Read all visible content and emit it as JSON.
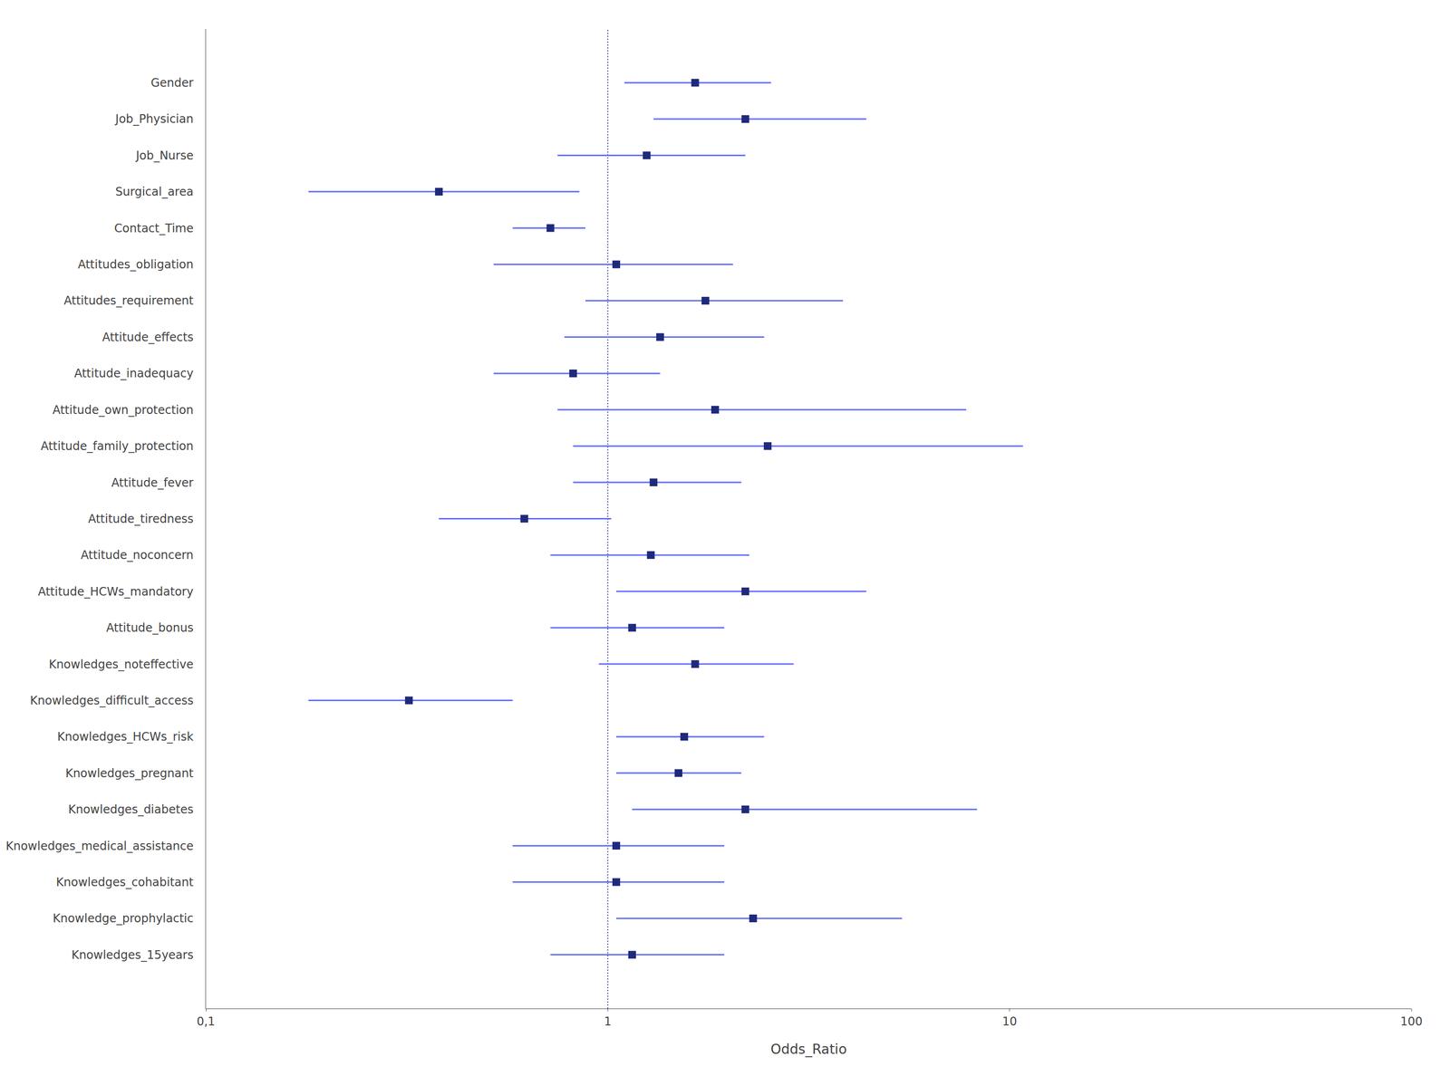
{
  "chart_data": {
    "type": "forest",
    "x_label": "Odds_Ratio",
    "categories": [
      "Gender",
      "Job_Physician",
      "Job_Nurse",
      "Surgical_area",
      "Contact_Time",
      "Attitudes_obligation",
      "Attitudes_requirement",
      "Attitude_effects",
      "Attitude_inadequacy",
      "Attitude_own_protection",
      "Attitude_family_protection",
      "Attitude_fever",
      "Attitude_tiredness",
      "Attitude_noconcern",
      "Attitude_HCWs_mandatory",
      "Attitude_bonus",
      "Knowledges_noteffective",
      "Knowledges_difficult_access",
      "Knowledges_HCWs_risk",
      "Knowledges_pregnant",
      "Knowledges_diabetes",
      "Knowledges_medical_assistance",
      "Knowledges_cohabitant",
      "Knowledge_prophylactic",
      "Knowledges_15years"
    ],
    "values": [
      1.65,
      2.2,
      1.25,
      0.38,
      0.72,
      1.05,
      1.75,
      1.35,
      0.82,
      1.85,
      2.5,
      1.3,
      0.62,
      1.28,
      2.2,
      1.15,
      1.65,
      0.32,
      1.55,
      1.5,
      2.2,
      1.05,
      1.05,
      2.3,
      1.15
    ],
    "ci_low": [
      1.1,
      1.3,
      0.75,
      0.18,
      0.58,
      0.52,
      0.88,
      0.78,
      0.52,
      0.75,
      0.82,
      0.82,
      0.38,
      0.72,
      1.05,
      0.72,
      0.95,
      0.18,
      1.05,
      1.05,
      1.15,
      0.58,
      0.58,
      1.05,
      0.72
    ],
    "ci_high": [
      2.55,
      4.4,
      2.2,
      0.85,
      0.88,
      2.05,
      3.85,
      2.45,
      1.35,
      7.8,
      10.8,
      2.15,
      1.02,
      2.25,
      4.4,
      1.95,
      2.9,
      0.58,
      2.45,
      2.15,
      8.3,
      1.95,
      1.95,
      5.4,
      1.95
    ],
    "reference_line": 1,
    "log": "x",
    "xlim": [
      0.1,
      100
    ],
    "xticks": [
      {
        "value": 0.1,
        "label": "0,1"
      },
      1,
      10,
      100
    ],
    "marker": "square",
    "grid": false
  }
}
